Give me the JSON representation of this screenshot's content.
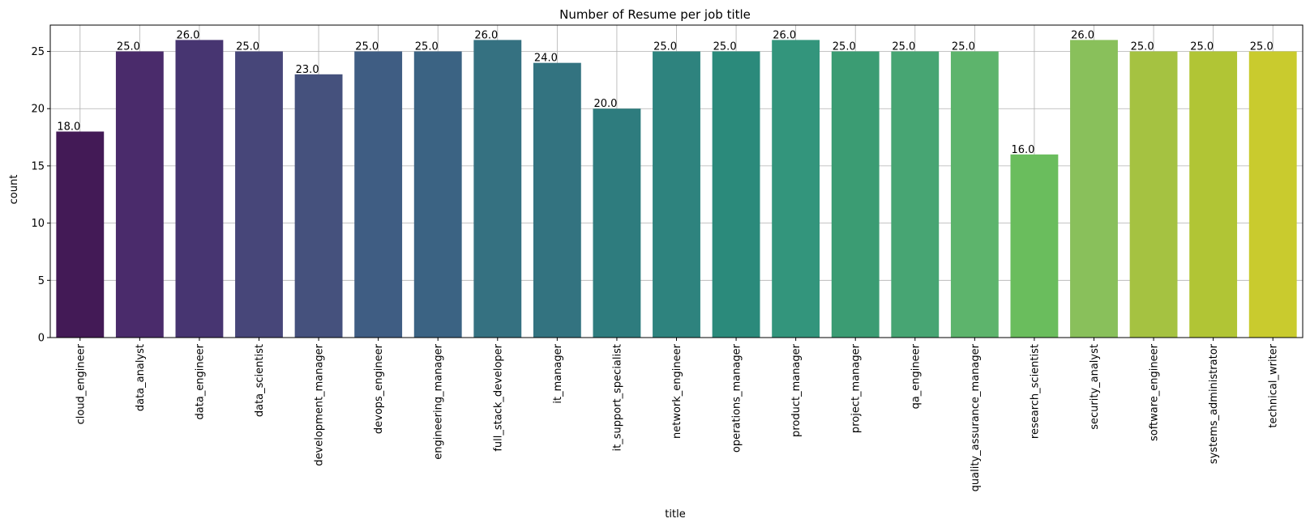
{
  "chart_data": {
    "type": "bar",
    "title": "Number of Resume per job title",
    "xlabel": "title",
    "ylabel": "count",
    "ylim": [
      0,
      27.3
    ],
    "yticks": [
      0,
      5,
      10,
      15,
      20,
      25
    ],
    "grid": true,
    "categories": [
      "cloud_engineer",
      "data_analyst",
      "data_engineer",
      "data_scientist",
      "development_manager",
      "devops_engineer",
      "engineering_manager",
      "full_stack_developer",
      "it_manager",
      "it_support_specialist",
      "network_engineer",
      "operations_manager",
      "product_manager",
      "project_manager",
      "qa_engineer",
      "quality_assurance_manager",
      "research_scientist",
      "security_analyst",
      "software_engineer",
      "systems_administrator",
      "technical_writer"
    ],
    "values": [
      18,
      25,
      26,
      25,
      23,
      25,
      25,
      26,
      24,
      20,
      25,
      25,
      26,
      25,
      25,
      25,
      16,
      26,
      25,
      25,
      25
    ],
    "data_labels": [
      "18.0",
      "25.0",
      "26.0",
      "25.0",
      "23.0",
      "25.0",
      "25.0",
      "26.0",
      "24.0",
      "20.0",
      "25.0",
      "25.0",
      "26.0",
      "25.0",
      "25.0",
      "25.0",
      "16.0",
      "26.0",
      "25.0",
      "25.0",
      "25.0"
    ],
    "colors": [
      "#431a56",
      "#4a2b6b",
      "#473571",
      "#474679",
      "#45517d",
      "#3f5d83",
      "#3b6383",
      "#357181",
      "#337380",
      "#2e7c7e",
      "#2e837e",
      "#2b8a7b",
      "#33957c",
      "#3b9c73",
      "#47a573",
      "#5db46c",
      "#6abd5d",
      "#89c05b",
      "#a5c241",
      "#b1c535",
      "#c9cb2e"
    ]
  }
}
